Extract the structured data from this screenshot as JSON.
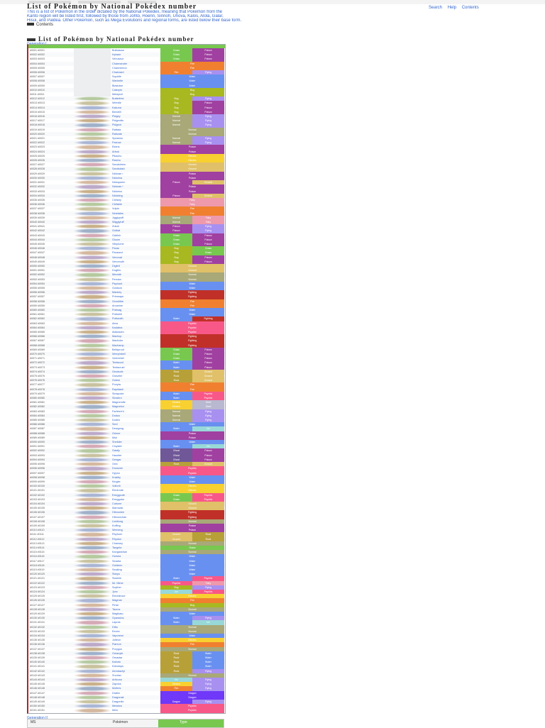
{
  "page": {
    "title": "List of Pokémon by National Pokédex number",
    "intro_lines": [
      "This is a list of Pokémon in the order dictated by the National Pokédex, meaning that Pokémon from the",
      "Kanto region will be listed first, followed by those from Johto, Hoenn, Sinnoh, Unova, Kalos, Alola, Galar,",
      "Hisui, and Paldea. Other Pokémon, such as Mega Evolutions and regional forms, are listed below their base form."
    ],
    "side_links": [
      "Search",
      "Help",
      "Contents"
    ],
    "contents_label": "Contents",
    "section_heading": "List of Pokémon by National Pokédex number",
    "generation_1": "Generation I",
    "generation_2": "Generation II",
    "gen2_header": {
      "ms": "MS",
      "pokemon": "Pokémon",
      "types": "Type"
    }
  },
  "type_colors": {
    "Normal": "#a8a878",
    "Fire": "#f08030",
    "Water": "#6890f0",
    "Grass": "#78c850",
    "Electric": "#f8d030",
    "Ice": "#98d8d8",
    "Fighting": "#c03028",
    "Poison": "#a040a0",
    "Ground": "#e0c068",
    "Flying": "#a890f0",
    "Psychic": "#f85888",
    "Bug": "#a8b820",
    "Rock": "#b8a038",
    "Ghost": "#705898",
    "Dragon": "#7038f8",
    "Dark": "#705848",
    "Steel": "#b8b8d0",
    "Fairy": "#ee99ac"
  },
  "pokemon": [
    {
      "num": "#0001",
      "name": "Bulbasaur",
      "t1": "Grass",
      "t2": "Poison"
    },
    {
      "num": "#0002",
      "name": "Ivysaur",
      "t1": "Grass",
      "t2": "Poison"
    },
    {
      "num": "#0003",
      "name": "Venusaur",
      "t1": "Grass",
      "t2": "Poison"
    },
    {
      "num": "#0004",
      "name": "Charmander",
      "t1": "Fire",
      "t2": ""
    },
    {
      "num": "#0005",
      "name": "Charmeleon",
      "t1": "Fire",
      "t2": ""
    },
    {
      "num": "#0006",
      "name": "Charizard",
      "t1": "Fire",
      "t2": "Flying"
    },
    {
      "num": "#0007",
      "name": "Squirtle",
      "t1": "Water",
      "t2": ""
    },
    {
      "num": "#0008",
      "name": "Wartortle",
      "t1": "Water",
      "t2": ""
    },
    {
      "num": "#0009",
      "name": "Blastoise",
      "t1": "Water",
      "t2": ""
    },
    {
      "num": "#0010",
      "name": "Caterpie",
      "t1": "Bug",
      "t2": ""
    },
    {
      "num": "#0011",
      "name": "Metapod",
      "t1": "Bug",
      "t2": ""
    },
    {
      "num": "#0012",
      "name": "Butterfree",
      "t1": "Bug",
      "t2": "Flying"
    },
    {
      "num": "#0013",
      "name": "Weedle",
      "t1": "Bug",
      "t2": "Poison"
    },
    {
      "num": "#0014",
      "name": "Kakuna",
      "t1": "Bug",
      "t2": "Poison"
    },
    {
      "num": "#0015",
      "name": "Beedrill",
      "t1": "Bug",
      "t2": "Poison"
    },
    {
      "num": "#0016",
      "name": "Pidgey",
      "t1": "Normal",
      "t2": "Flying"
    },
    {
      "num": "#0017",
      "name": "Pidgeotto",
      "t1": "Normal",
      "t2": "Flying"
    },
    {
      "num": "#0018",
      "name": "Pidgeot",
      "t1": "Normal",
      "t2": "Flying"
    },
    {
      "num": "#0019",
      "name": "Rattata",
      "t1": "Normal",
      "t2": ""
    },
    {
      "num": "#0020",
      "name": "Raticate",
      "t1": "Normal",
      "t2": ""
    },
    {
      "num": "#0021",
      "name": "Spearow",
      "t1": "Normal",
      "t2": "Flying"
    },
    {
      "num": "#0022",
      "name": "Fearow",
      "t1": "Normal",
      "t2": "Flying"
    },
    {
      "num": "#0023",
      "name": "Ekans",
      "t1": "Poison",
      "t2": ""
    },
    {
      "num": "#0024",
      "name": "Arbok",
      "t1": "Poison",
      "t2": ""
    },
    {
      "num": "#0025",
      "name": "Pikachu",
      "t1": "Electric",
      "t2": ""
    },
    {
      "num": "#0026",
      "name": "Raichu",
      "t1": "Electric",
      "t2": ""
    },
    {
      "num": "#0027",
      "name": "Sandshrew",
      "t1": "Ground",
      "t2": ""
    },
    {
      "num": "#0028",
      "name": "Sandslash",
      "t1": "Ground",
      "t2": ""
    },
    {
      "num": "#0029",
      "name": "Nidoran♀",
      "t1": "Poison",
      "t2": ""
    },
    {
      "num": "#0030",
      "name": "Nidorina",
      "t1": "Poison",
      "t2": ""
    },
    {
      "num": "#0031",
      "name": "Nidoqueen",
      "t1": "Poison",
      "t2": "Ground"
    },
    {
      "num": "#0032",
      "name": "Nidoran♂",
      "t1": "Poison",
      "t2": ""
    },
    {
      "num": "#0033",
      "name": "Nidorino",
      "t1": "Poison",
      "t2": ""
    },
    {
      "num": "#0034",
      "name": "Nidoking",
      "t1": "Poison",
      "t2": "Ground"
    },
    {
      "num": "#0035",
      "name": "Clefairy",
      "t1": "Fairy",
      "t2": ""
    },
    {
      "num": "#0036",
      "name": "Clefable",
      "t1": "Fairy",
      "t2": ""
    },
    {
      "num": "#0037",
      "name": "Vulpix",
      "t1": "Fire",
      "t2": ""
    },
    {
      "num": "#0038",
      "name": "Ninetales",
      "t1": "Fire",
      "t2": ""
    },
    {
      "num": "#0039",
      "name": "Jigglypuff",
      "t1": "Normal",
      "t2": "Fairy"
    },
    {
      "num": "#0040",
      "name": "Wigglytuff",
      "t1": "Normal",
      "t2": "Fairy"
    },
    {
      "num": "#0041",
      "name": "Zubat",
      "t1": "Poison",
      "t2": "Flying"
    },
    {
      "num": "#0042",
      "name": "Golbat",
      "t1": "Poison",
      "t2": "Flying"
    },
    {
      "num": "#0043",
      "name": "Oddish",
      "t1": "Grass",
      "t2": "Poison"
    },
    {
      "num": "#0044",
      "name": "Gloom",
      "t1": "Grass",
      "t2": "Poison"
    },
    {
      "num": "#0045",
      "name": "Vileplume",
      "t1": "Grass",
      "t2": "Poison"
    },
    {
      "num": "#0046",
      "name": "Paras",
      "t1": "Bug",
      "t2": "Grass"
    },
    {
      "num": "#0047",
      "name": "Parasect",
      "t1": "Bug",
      "t2": "Grass"
    },
    {
      "num": "#0048",
      "name": "Venonat",
      "t1": "Bug",
      "t2": "Poison"
    },
    {
      "num": "#0049",
      "name": "Venomoth",
      "t1": "Bug",
      "t2": "Poison"
    },
    {
      "num": "#0050",
      "name": "Diglett",
      "t1": "Ground",
      "t2": ""
    },
    {
      "num": "#0051",
      "name": "Dugtrio",
      "t1": "Ground",
      "t2": ""
    },
    {
      "num": "#0052",
      "name": "Meowth",
      "t1": "Normal",
      "t2": ""
    },
    {
      "num": "#0053",
      "name": "Persian",
      "t1": "Normal",
      "t2": ""
    },
    {
      "num": "#0054",
      "name": "Psyduck",
      "t1": "Water",
      "t2": ""
    },
    {
      "num": "#0055",
      "name": "Golduck",
      "t1": "Water",
      "t2": ""
    },
    {
      "num": "#0056",
      "name": "Mankey",
      "t1": "Fighting",
      "t2": ""
    },
    {
      "num": "#0057",
      "name": "Primeape",
      "t1": "Fighting",
      "t2": ""
    },
    {
      "num": "#0058",
      "name": "Growlithe",
      "t1": "Fire",
      "t2": ""
    },
    {
      "num": "#0059",
      "name": "Arcanine",
      "t1": "Fire",
      "t2": ""
    },
    {
      "num": "#0060",
      "name": "Poliwag",
      "t1": "Water",
      "t2": ""
    },
    {
      "num": "#0061",
      "name": "Poliwhirl",
      "t1": "Water",
      "t2": ""
    },
    {
      "num": "#0062",
      "name": "Poliwrath",
      "t1": "Water",
      "t2": "Fighting"
    },
    {
      "num": "#0063",
      "name": "Abra",
      "t1": "Psychic",
      "t2": ""
    },
    {
      "num": "#0064",
      "name": "Kadabra",
      "t1": "Psychic",
      "t2": ""
    },
    {
      "num": "#0065",
      "name": "Alakazam",
      "t1": "Psychic",
      "t2": ""
    },
    {
      "num": "#0066",
      "name": "Machop",
      "t1": "Fighting",
      "t2": ""
    },
    {
      "num": "#0067",
      "name": "Machoke",
      "t1": "Fighting",
      "t2": ""
    },
    {
      "num": "#0068",
      "name": "Machamp",
      "t1": "Fighting",
      "t2": ""
    },
    {
      "num": "#0069",
      "name": "Bellsprout",
      "t1": "Grass",
      "t2": "Poison"
    },
    {
      "num": "#0070",
      "name": "Weepinbell",
      "t1": "Grass",
      "t2": "Poison"
    },
    {
      "num": "#0071",
      "name": "Victreebel",
      "t1": "Grass",
      "t2": "Poison"
    },
    {
      "num": "#0072",
      "name": "Tentacool",
      "t1": "Water",
      "t2": "Poison"
    },
    {
      "num": "#0073",
      "name": "Tentacruel",
      "t1": "Water",
      "t2": "Poison"
    },
    {
      "num": "#0074",
      "name": "Geodude",
      "t1": "Rock",
      "t2": "Ground"
    },
    {
      "num": "#0075",
      "name": "Graveler",
      "t1": "Rock",
      "t2": "Ground"
    },
    {
      "num": "#0076",
      "name": "Golem",
      "t1": "Rock",
      "t2": "Ground"
    },
    {
      "num": "#0077",
      "name": "Ponyta",
      "t1": "Fire",
      "t2": ""
    },
    {
      "num": "#0078",
      "name": "Rapidash",
      "t1": "Fire",
      "t2": ""
    },
    {
      "num": "#0079",
      "name": "Slowpoke",
      "t1": "Water",
      "t2": "Psychic"
    },
    {
      "num": "#0080",
      "name": "Slowbro",
      "t1": "Water",
      "t2": "Psychic"
    },
    {
      "num": "#0081",
      "name": "Magnemite",
      "t1": "Electric",
      "t2": "Steel"
    },
    {
      "num": "#0082",
      "name": "Magneton",
      "t1": "Electric",
      "t2": "Steel"
    },
    {
      "num": "#0083",
      "name": "Farfetch'd",
      "t1": "Normal",
      "t2": "Flying"
    },
    {
      "num": "#0084",
      "name": "Doduo",
      "t1": "Normal",
      "t2": "Flying"
    },
    {
      "num": "#0085",
      "name": "Dodrio",
      "t1": "Normal",
      "t2": "Flying"
    },
    {
      "num": "#0086",
      "name": "Seel",
      "t1": "Water",
      "t2": ""
    },
    {
      "num": "#0087",
      "name": "Dewgong",
      "t1": "Water",
      "t2": "Ice"
    },
    {
      "num": "#0088",
      "name": "Grimer",
      "t1": "Poison",
      "t2": ""
    },
    {
      "num": "#0089",
      "name": "Muk",
      "t1": "Poison",
      "t2": ""
    },
    {
      "num": "#0090",
      "name": "Shellder",
      "t1": "Water",
      "t2": ""
    },
    {
      "num": "#0091",
      "name": "Cloyster",
      "t1": "Water",
      "t2": "Ice"
    },
    {
      "num": "#0092",
      "name": "Gastly",
      "t1": "Ghost",
      "t2": "Poison"
    },
    {
      "num": "#0093",
      "name": "Haunter",
      "t1": "Ghost",
      "t2": "Poison"
    },
    {
      "num": "#0094",
      "name": "Gengar",
      "t1": "Ghost",
      "t2": "Poison"
    },
    {
      "num": "#0095",
      "name": "Onix",
      "t1": "Rock",
      "t2": "Ground"
    },
    {
      "num": "#0096",
      "name": "Drowzee",
      "t1": "Psychic",
      "t2": ""
    },
    {
      "num": "#0097",
      "name": "Hypno",
      "t1": "Psychic",
      "t2": ""
    },
    {
      "num": "#0098",
      "name": "Krabby",
      "t1": "Water",
      "t2": ""
    },
    {
      "num": "#0099",
      "name": "Kingler",
      "t1": "Water",
      "t2": ""
    },
    {
      "num": "#0100",
      "name": "Voltorb",
      "t1": "Electric",
      "t2": ""
    },
    {
      "num": "#0101",
      "name": "Electrode",
      "t1": "Electric",
      "t2": ""
    },
    {
      "num": "#0102",
      "name": "Exeggcute",
      "t1": "Grass",
      "t2": "Psychic"
    },
    {
      "num": "#0103",
      "name": "Exeggutor",
      "t1": "Grass",
      "t2": "Psychic"
    },
    {
      "num": "#0104",
      "name": "Cubone",
      "t1": "Ground",
      "t2": ""
    },
    {
      "num": "#0105",
      "name": "Marowak",
      "t1": "Ground",
      "t2": ""
    },
    {
      "num": "#0106",
      "name": "Hitmonlee",
      "t1": "Fighting",
      "t2": ""
    },
    {
      "num": "#0107",
      "name": "Hitmonchan",
      "t1": "Fighting",
      "t2": ""
    },
    {
      "num": "#0108",
      "name": "Lickitung",
      "t1": "Normal",
      "t2": ""
    },
    {
      "num": "#0109",
      "name": "Koffing",
      "t1": "Poison",
      "t2": ""
    },
    {
      "num": "#0110",
      "name": "Weezing",
      "t1": "Poison",
      "t2": ""
    },
    {
      "num": "#0111",
      "name": "Rhyhorn",
      "t1": "Ground",
      "t2": "Rock"
    },
    {
      "num": "#0112",
      "name": "Rhydon",
      "t1": "Ground",
      "t2": "Rock"
    },
    {
      "num": "#0113",
      "name": "Chansey",
      "t1": "Normal",
      "t2": ""
    },
    {
      "num": "#0114",
      "name": "Tangela",
      "t1": "Grass",
      "t2": ""
    },
    {
      "num": "#0115",
      "name": "Kangaskhan",
      "t1": "Normal",
      "t2": ""
    },
    {
      "num": "#0116",
      "name": "Horsea",
      "t1": "Water",
      "t2": ""
    },
    {
      "num": "#0117",
      "name": "Seadra",
      "t1": "Water",
      "t2": ""
    },
    {
      "num": "#0118",
      "name": "Goldeen",
      "t1": "Water",
      "t2": ""
    },
    {
      "num": "#0119",
      "name": "Seaking",
      "t1": "Water",
      "t2": ""
    },
    {
      "num": "#0120",
      "name": "Staryu",
      "t1": "Water",
      "t2": ""
    },
    {
      "num": "#0121",
      "name": "Starmie",
      "t1": "Water",
      "t2": "Psychic"
    },
    {
      "num": "#0122",
      "name": "Mr. Mime",
      "t1": "Psychic",
      "t2": "Fairy"
    },
    {
      "num": "#0123",
      "name": "Scyther",
      "t1": "Bug",
      "t2": "Flying"
    },
    {
      "num": "#0124",
      "name": "Jynx",
      "t1": "Ice",
      "t2": "Psychic"
    },
    {
      "num": "#0125",
      "name": "Electabuzz",
      "t1": "Electric",
      "t2": ""
    },
    {
      "num": "#0126",
      "name": "Magmar",
      "t1": "Fire",
      "t2": ""
    },
    {
      "num": "#0127",
      "name": "Pinsir",
      "t1": "Bug",
      "t2": ""
    },
    {
      "num": "#0128",
      "name": "Tauros",
      "t1": "Normal",
      "t2": ""
    },
    {
      "num": "#0129",
      "name": "Magikarp",
      "t1": "Water",
      "t2": ""
    },
    {
      "num": "#0130",
      "name": "Gyarados",
      "t1": "Water",
      "t2": "Flying"
    },
    {
      "num": "#0131",
      "name": "Lapras",
      "t1": "Water",
      "t2": "Ice"
    },
    {
      "num": "#0132",
      "name": "Ditto",
      "t1": "Normal",
      "t2": ""
    },
    {
      "num": "#0133",
      "name": "Eevee",
      "t1": "Normal",
      "t2": ""
    },
    {
      "num": "#0134",
      "name": "Vaporeon",
      "t1": "Water",
      "t2": ""
    },
    {
      "num": "#0135",
      "name": "Jolteon",
      "t1": "Electric",
      "t2": ""
    },
    {
      "num": "#0136",
      "name": "Flareon",
      "t1": "Fire",
      "t2": ""
    },
    {
      "num": "#0137",
      "name": "Porygon",
      "t1": "Normal",
      "t2": ""
    },
    {
      "num": "#0138",
      "name": "Omanyte",
      "t1": "Rock",
      "t2": "Water"
    },
    {
      "num": "#0139",
      "name": "Omastar",
      "t1": "Rock",
      "t2": "Water"
    },
    {
      "num": "#0140",
      "name": "Kabuto",
      "t1": "Rock",
      "t2": "Water"
    },
    {
      "num": "#0141",
      "name": "Kabutops",
      "t1": "Rock",
      "t2": "Water"
    },
    {
      "num": "#0142",
      "name": "Aerodactyl",
      "t1": "Rock",
      "t2": "Flying"
    },
    {
      "num": "#0143",
      "name": "Snorlax",
      "t1": "Normal",
      "t2": ""
    },
    {
      "num": "#0144",
      "name": "Articuno",
      "t1": "Ice",
      "t2": "Flying"
    },
    {
      "num": "#0145",
      "name": "Zapdos",
      "t1": "Electric",
      "t2": "Flying"
    },
    {
      "num": "#0146",
      "name": "Moltres",
      "t1": "Fire",
      "t2": "Flying"
    },
    {
      "num": "#0147",
      "name": "Dratini",
      "t1": "Dragon",
      "t2": ""
    },
    {
      "num": "#0148",
      "name": "Dragonair",
      "t1": "Dragon",
      "t2": ""
    },
    {
      "num": "#0149",
      "name": "Dragonite",
      "t1": "Dragon",
      "t2": "Flying"
    },
    {
      "num": "#0150",
      "name": "Mewtwo",
      "t1": "Psychic",
      "t2": ""
    },
    {
      "num": "#0151",
      "name": "Mew",
      "t1": "Psychic",
      "t2": ""
    }
  ]
}
